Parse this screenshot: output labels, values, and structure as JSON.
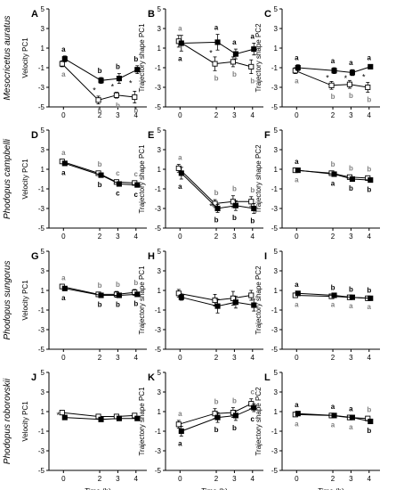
{
  "figure": {
    "xlabel": "Time (h)",
    "species": [
      "Mesocricetus auratus",
      "Phodopus campbelli",
      "Phodopus sungorus",
      "Phodopus roborovskii"
    ],
    "colors": {
      "filled": "#000000",
      "open": "#ffffff",
      "letter_filled": "#000000",
      "letter_open": "#808080"
    }
  },
  "chart_data": [
    {
      "panel": "A",
      "type": "line",
      "species": "Mesocricetus auratus",
      "ylabel": "Velocity PC1",
      "x": [
        0,
        2,
        3,
        4
      ],
      "ylim": [
        -5,
        5
      ],
      "yticks": [
        5,
        3,
        1,
        -1,
        -3,
        -5
      ],
      "series": [
        {
          "marker": "filled",
          "values": [
            -0.1,
            -2.3,
            -2.1,
            -1.2
          ],
          "errors": [
            0.3,
            0.3,
            0.5,
            0.4
          ],
          "letters": [
            "a",
            "b",
            "b",
            "b"
          ]
        },
        {
          "marker": "open",
          "values": [
            -0.6,
            -4.3,
            -3.8,
            -4.0
          ],
          "errors": [
            0.3,
            0.4,
            0.3,
            0.6
          ],
          "letters": [
            "a",
            "b",
            "b",
            "b"
          ]
        }
      ],
      "stars": [
        "",
        "*",
        "*",
        "*"
      ]
    },
    {
      "panel": "B",
      "type": "line",
      "species": "Mesocricetus auratus",
      "ylabel": "Trajectory shape PC1",
      "x": [
        0,
        2,
        3,
        4
      ],
      "ylim": [
        -5,
        5
      ],
      "yticks": [
        5,
        3,
        1,
        -1,
        -3,
        -5
      ],
      "series": [
        {
          "marker": "filled",
          "values": [
            1.5,
            1.6,
            0.4,
            0.9
          ],
          "errors": [
            0.8,
            0.8,
            0.5,
            0.6
          ],
          "letters": [
            "a",
            "a",
            "a",
            "a"
          ]
        },
        {
          "marker": "open",
          "values": [
            1.7,
            -0.6,
            -0.4,
            -0.9
          ],
          "errors": [
            0.6,
            0.7,
            0.5,
            0.7
          ],
          "letters": [
            "a",
            "b",
            "b",
            "b"
          ]
        }
      ],
      "stars": [
        "",
        "*",
        "",
        ""
      ]
    },
    {
      "panel": "C",
      "type": "line",
      "species": "Mesocricetus auratus",
      "ylabel": "Trajectory shape PC2",
      "x": [
        0,
        2,
        3,
        4
      ],
      "ylim": [
        -5,
        5
      ],
      "yticks": [
        5,
        3,
        1,
        -1,
        -3,
        -5
      ],
      "series": [
        {
          "marker": "filled",
          "values": [
            -1.0,
            -1.3,
            -1.5,
            -0.9
          ],
          "errors": [
            0.3,
            0.3,
            0.3,
            0.2
          ],
          "letters": [
            "a",
            "a",
            "a",
            "a"
          ]
        },
        {
          "marker": "open",
          "values": [
            -1.3,
            -2.8,
            -2.7,
            -3.0
          ],
          "errors": [
            0.3,
            0.4,
            0.4,
            0.5
          ],
          "letters": [
            "a",
            "b",
            "b",
            "b"
          ]
        }
      ],
      "stars": [
        "",
        "*",
        "*",
        "*"
      ]
    },
    {
      "panel": "D",
      "type": "line",
      "species": "Phodopus campbelli",
      "ylabel": "Velocity PC1",
      "x": [
        0,
        2,
        3,
        4
      ],
      "ylim": [
        -5,
        5
      ],
      "yticks": [
        5,
        3,
        1,
        -1,
        -3,
        -5
      ],
      "series": [
        {
          "marker": "filled",
          "values": [
            1.6,
            0.4,
            -0.5,
            -0.6
          ],
          "errors": [
            0.2,
            0.2,
            0.2,
            0.2
          ],
          "letters": [
            "a",
            "b",
            "c",
            "c"
          ]
        },
        {
          "marker": "open",
          "values": [
            1.8,
            0.6,
            -0.3,
            -0.4
          ],
          "errors": [
            0.2,
            0.2,
            0.2,
            0.2
          ],
          "letters": [
            "a",
            "b",
            "c",
            "c"
          ]
        }
      ],
      "stars": [
        "",
        "",
        "",
        ""
      ]
    },
    {
      "panel": "E",
      "type": "line",
      "species": "Phodopus campbelli",
      "ylabel": "Trajectory shape PC1",
      "x": [
        0,
        2,
        3,
        4
      ],
      "ylim": [
        -5,
        5
      ],
      "yticks": [
        5,
        3,
        1,
        -1,
        -3,
        -5
      ],
      "series": [
        {
          "marker": "filled",
          "values": [
            0.6,
            -3.0,
            -2.7,
            -3.0
          ],
          "errors": [
            0.6,
            0.4,
            0.5,
            0.5
          ],
          "letters": [
            "a",
            "b",
            "b",
            "b"
          ]
        },
        {
          "marker": "open",
          "values": [
            1.1,
            -2.5,
            -2.3,
            -2.3
          ],
          "errors": [
            0.4,
            0.4,
            0.6,
            0.5
          ],
          "letters": [
            "a",
            "b",
            "b",
            "b"
          ]
        }
      ],
      "stars": [
        "",
        "*",
        "",
        ""
      ]
    },
    {
      "panel": "F",
      "type": "line",
      "species": "Phodopus campbelli",
      "ylabel": "Trajectory shape PC2",
      "x": [
        0,
        2,
        3,
        4
      ],
      "ylim": [
        -5,
        5
      ],
      "yticks": [
        5,
        3,
        1,
        -1,
        -3,
        -5
      ],
      "series": [
        {
          "marker": "filled",
          "values": [
            0.9,
            0.5,
            0.0,
            -0.1
          ],
          "errors": [
            0.2,
            0.2,
            0.2,
            0.2
          ],
          "letters": [
            "a",
            "a",
            "b",
            "b"
          ]
        },
        {
          "marker": "open",
          "values": [
            0.9,
            0.6,
            0.2,
            0.1
          ],
          "errors": [
            0.2,
            0.2,
            0.2,
            0.2
          ],
          "letters": [
            "a",
            "b",
            "b",
            "b"
          ]
        }
      ],
      "stars": [
        "",
        "",
        "",
        ""
      ]
    },
    {
      "panel": "G",
      "type": "line",
      "species": "Phodopus sungorus",
      "ylabel": "Velocity PC1",
      "x": [
        0,
        2,
        3,
        4
      ],
      "ylim": [
        -5,
        5
      ],
      "yticks": [
        5,
        3,
        1,
        -1,
        -3,
        -5
      ],
      "series": [
        {
          "marker": "filled",
          "values": [
            1.2,
            0.5,
            0.5,
            0.6
          ],
          "errors": [
            0.2,
            0.2,
            0.2,
            0.2
          ],
          "letters": [
            "a",
            "b",
            "b",
            "b"
          ]
        },
        {
          "marker": "open",
          "values": [
            1.4,
            0.6,
            0.6,
            0.8
          ],
          "errors": [
            0.2,
            0.2,
            0.3,
            0.3
          ],
          "letters": [
            "a",
            "b",
            "b",
            "b"
          ]
        }
      ],
      "stars": [
        "",
        "",
        "",
        ""
      ]
    },
    {
      "panel": "H",
      "type": "line",
      "species": "Phodopus sungorus",
      "ylabel": "Trajectory shape PC1",
      "x": [
        0,
        2,
        3,
        4
      ],
      "ylim": [
        -5,
        5
      ],
      "yticks": [
        5,
        3,
        1,
        -1,
        -3,
        -5
      ],
      "series": [
        {
          "marker": "filled",
          "values": [
            0.3,
            -0.6,
            -0.2,
            -0.5
          ],
          "errors": [
            0.3,
            0.7,
            0.6,
            0.6
          ],
          "letters": [
            "",
            "",
            "",
            ""
          ]
        },
        {
          "marker": "open",
          "values": [
            0.7,
            0.0,
            0.2,
            0.5
          ],
          "errors": [
            0.4,
            0.6,
            0.7,
            0.5
          ],
          "letters": [
            "",
            "",
            "",
            ""
          ]
        }
      ],
      "stars": [
        "",
        "",
        "",
        ""
      ]
    },
    {
      "panel": "I",
      "type": "line",
      "species": "Phodopus sungorus",
      "ylabel": "Trajectory shape PC2",
      "x": [
        0,
        2,
        3,
        4
      ],
      "ylim": [
        -5,
        5
      ],
      "yticks": [
        5,
        3,
        1,
        -1,
        -3,
        -5
      ],
      "series": [
        {
          "marker": "filled",
          "values": [
            0.7,
            0.5,
            0.3,
            0.2
          ],
          "errors": [
            0.2,
            0.1,
            0.1,
            0.1
          ],
          "letters": [
            "a",
            "b",
            "b",
            "b"
          ]
        },
        {
          "marker": "open",
          "values": [
            0.5,
            0.4,
            0.3,
            0.2
          ],
          "errors": [
            0.2,
            0.1,
            0.1,
            0.1
          ],
          "letters": [
            "a",
            "a",
            "a",
            "a"
          ]
        }
      ],
      "stars": [
        "",
        "",
        "",
        ""
      ]
    },
    {
      "panel": "J",
      "type": "line",
      "species": "Phodopus roborovskii",
      "ylabel": "Velocity PC1",
      "x": [
        0,
        2,
        3,
        4
      ],
      "ylim": [
        -5,
        5
      ],
      "yticks": [
        5,
        3,
        1,
        -1,
        -3,
        -5
      ],
      "series": [
        {
          "marker": "filled",
          "values": [
            0.4,
            0.2,
            0.3,
            0.3
          ],
          "errors": [
            0.2,
            0.2,
            0.2,
            0.2
          ],
          "letters": [
            "",
            "",
            "",
            ""
          ]
        },
        {
          "marker": "open",
          "values": [
            0.9,
            0.5,
            0.5,
            0.6
          ],
          "errors": [
            0.2,
            0.2,
            0.2,
            0.2
          ],
          "letters": [
            "",
            "",
            "",
            ""
          ]
        }
      ],
      "stars": [
        "*",
        "",
        "",
        ""
      ]
    },
    {
      "panel": "K",
      "type": "line",
      "species": "Phodopus roborovskii",
      "ylabel": "Trajectory shape PC1",
      "x": [
        0,
        2,
        3,
        4
      ],
      "ylim": [
        -5,
        5
      ],
      "yticks": [
        5,
        3,
        1,
        -1,
        -3,
        -5
      ],
      "series": [
        {
          "marker": "filled",
          "values": [
            -1.0,
            0.4,
            0.6,
            1.4
          ],
          "errors": [
            0.5,
            0.5,
            0.5,
            0.4
          ],
          "letters": [
            "a",
            "b",
            "b",
            "c"
          ]
        },
        {
          "marker": "open",
          "values": [
            -0.3,
            0.8,
            0.9,
            1.8
          ],
          "errors": [
            0.4,
            0.5,
            0.5,
            0.5
          ],
          "letters": [
            "a",
            "b",
            "b",
            "c"
          ]
        }
      ],
      "stars": [
        "",
        "",
        "",
        ""
      ]
    },
    {
      "panel": "L",
      "type": "line",
      "species": "Phodopus roborovskii",
      "ylabel": "Trajectory shape PC2",
      "x": [
        0,
        2,
        3,
        4
      ],
      "ylim": [
        -5,
        5
      ],
      "yticks": [
        5,
        3,
        1,
        -1,
        -3,
        -5
      ],
      "series": [
        {
          "marker": "filled",
          "values": [
            0.8,
            0.6,
            0.4,
            0.0
          ],
          "errors": [
            0.2,
            0.2,
            0.2,
            0.2
          ],
          "letters": [
            "a",
            "a",
            "a",
            "b"
          ]
        },
        {
          "marker": "open",
          "values": [
            0.7,
            0.6,
            0.4,
            0.3
          ],
          "errors": [
            0.2,
            0.2,
            0.2,
            0.2
          ],
          "letters": [
            "a",
            "a",
            "a",
            "b"
          ]
        }
      ],
      "stars": [
        "",
        "",
        "",
        ""
      ]
    }
  ]
}
